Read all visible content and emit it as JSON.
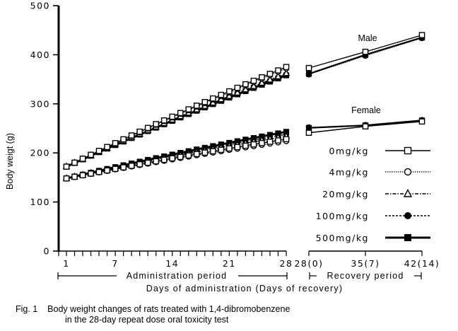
{
  "caption": {
    "line1": "Fig. 1    Body weight changes of rats treated with 1,4-dibromobenzene",
    "line2": "in the 28-day repeat dose oral toxicity test"
  },
  "chart_data": {
    "type": "line",
    "title": "",
    "ylabel": "Body weigt (g)",
    "xlabel": "Days of administration (Days of recovery)",
    "ylim": [
      0,
      500
    ],
    "yticks": [
      0,
      100,
      200,
      300,
      400,
      500
    ],
    "admin_period": {
      "label": "Administration period",
      "xlim": [
        1,
        28
      ],
      "xtick_labels": [
        {
          "x": 1,
          "label": "1"
        },
        {
          "x": 7,
          "label": "7"
        },
        {
          "x": 14,
          "label": "14"
        },
        {
          "x": 21,
          "label": "21"
        },
        {
          "x": 28,
          "label": "28"
        }
      ]
    },
    "recovery_period": {
      "label": "Recovery period",
      "x": [
        28,
        35,
        42
      ],
      "xtick_labels": [
        "28(0)",
        "35(7)",
        "42(14)"
      ]
    },
    "group_labels": {
      "male": "Male",
      "female": "Female"
    },
    "legend": [
      {
        "name": "0mg/kg",
        "marker": "square-open",
        "line": "solid"
      },
      {
        "name": "4mg/kg",
        "marker": "circle-open",
        "line": "dotted"
      },
      {
        "name": "20mg/kg",
        "marker": "triangle-open",
        "line": "dashdot"
      },
      {
        "name": "100mg/kg",
        "marker": "circle-filled",
        "line": "dashed"
      },
      {
        "name": "500mg/kg",
        "marker": "square-filled",
        "line": "thick-solid"
      }
    ],
    "admin_series": {
      "male": [
        {
          "name": "0mg/kg",
          "start": 172,
          "end": 375
        },
        {
          "name": "4mg/kg",
          "start": 172,
          "end": 372
        },
        {
          "name": "20mg/kg",
          "start": 172,
          "end": 362
        },
        {
          "name": "100mg/kg",
          "start": 172,
          "end": 360
        },
        {
          "name": "500mg/kg",
          "start": 172,
          "end": 358
        }
      ],
      "female": [
        {
          "name": "0mg/kg",
          "start": 148,
          "end": 228
        },
        {
          "name": "4mg/kg",
          "start": 148,
          "end": 224
        },
        {
          "name": "20mg/kg",
          "start": 148,
          "end": 234
        },
        {
          "name": "100mg/kg",
          "start": 148,
          "end": 238
        },
        {
          "name": "500mg/kg",
          "start": 148,
          "end": 243
        }
      ]
    },
    "recovery_series": {
      "male": [
        {
          "name": "0mg/kg",
          "values": [
            373,
            406,
            440
          ]
        },
        {
          "name": "500mg/kg",
          "values": [
            361,
            400,
            435
          ]
        },
        {
          "name": "4mg/kg",
          "values": [
            360,
            398,
            434
          ]
        }
      ],
      "female": [
        {
          "name": "0mg/kg",
          "values": [
            241,
            254,
            264
          ]
        },
        {
          "name": "500mg/kg",
          "values": [
            251,
            256,
            266
          ]
        },
        {
          "name": "4mg/kg",
          "values": [
            252,
            257,
            267
          ]
        }
      ]
    },
    "grid": false,
    "legend_position": "right"
  }
}
